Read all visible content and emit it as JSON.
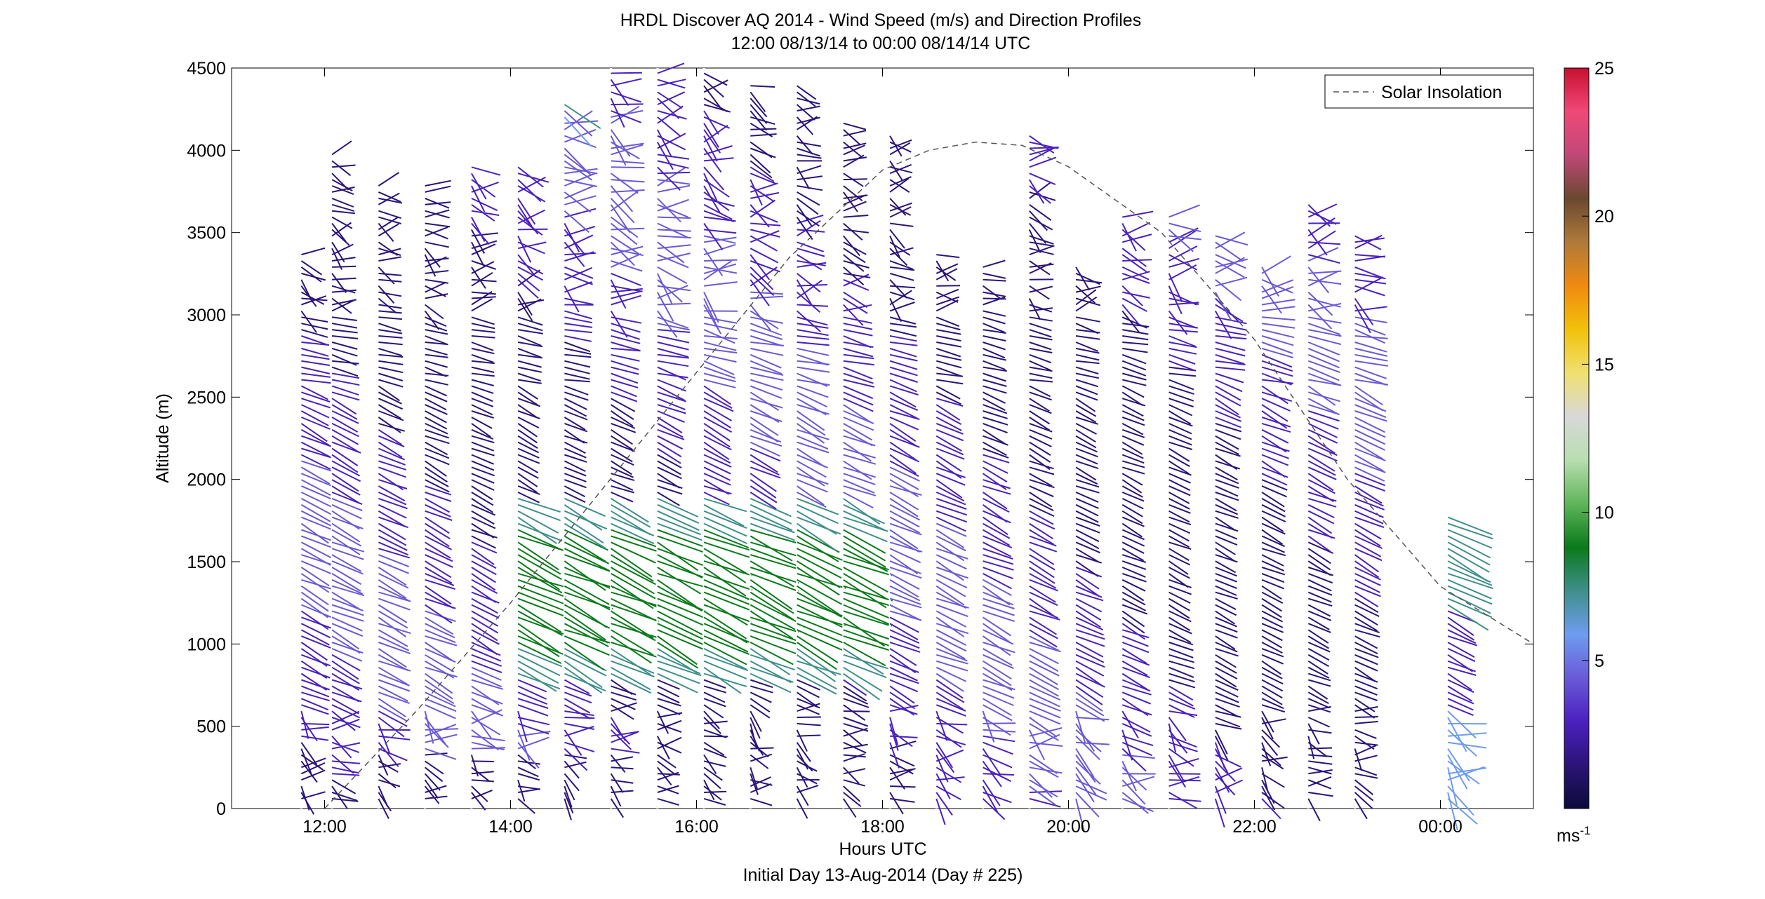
{
  "chart_data": {
    "type": "wind-profile",
    "title": "HRDL Discover AQ 2014 - Wind Speed (m/s) and Direction Profiles",
    "subtitle": "12:00 08/13/14 to 00:00 08/14/14  UTC",
    "xlabel": "Hours UTC",
    "xlabel_sub": "Initial Day 13-Aug-2014 (Day # 225)",
    "ylabel": "Altitude (m)",
    "xlim_hours": [
      11,
      25
    ],
    "ylim": [
      0,
      4500
    ],
    "x_ticks": [
      {
        "hour": 12,
        "label": "12:00"
      },
      {
        "hour": 14,
        "label": "14:00"
      },
      {
        "hour": 16,
        "label": "16:00"
      },
      {
        "hour": 18,
        "label": "18:00"
      },
      {
        "hour": 20,
        "label": "20:00"
      },
      {
        "hour": 22,
        "label": "22:00"
      },
      {
        "hour": 24,
        "label": "00:00"
      }
    ],
    "y_ticks": [
      0,
      500,
      1000,
      1500,
      2000,
      2500,
      3000,
      3500,
      4000,
      4500
    ],
    "legend": {
      "label": "Solar Insolation",
      "placement": "top-right",
      "style": "dashed"
    },
    "colorbar": {
      "label": "ms",
      "label_exp": "-1",
      "range": [
        0,
        25
      ],
      "ticks": [
        5,
        10,
        15,
        20,
        25
      ],
      "colors": [
        "#0b0b3b",
        "#2c1478",
        "#4a20c0",
        "#6a5ad8",
        "#6e9cf0",
        "#3f8f8a",
        "#0a7a1a",
        "#5fb55a",
        "#b8deb0",
        "#d8d8d8",
        "#f0e070",
        "#f2c10a",
        "#f08a10",
        "#b07a3a",
        "#6a4830",
        "#c04878",
        "#f04878",
        "#c81030"
      ]
    },
    "insolation_curve": {
      "x_hours": [
        12,
        13,
        14,
        15,
        16,
        17,
        18,
        18.5,
        19,
        19.5,
        20,
        21,
        22,
        23,
        24,
        25
      ],
      "y": [
        0,
        600,
        1250,
        1950,
        2650,
        3350,
        3880,
        4000,
        4050,
        4030,
        3900,
        3500,
        2850,
        2000,
        1350,
        1000
      ]
    },
    "profile_times_hours": [
      11.75,
      12.08,
      12.58,
      13.08,
      13.58,
      14.08,
      14.58,
      15.08,
      15.58,
      16.08,
      16.58,
      17.08,
      17.58,
      18.08,
      18.58,
      19.08,
      19.58,
      20.08,
      20.58,
      21.08,
      21.58,
      22.08,
      22.58,
      23.08,
      24.08
    ],
    "profile_top_m": [
      3400,
      4000,
      3800,
      3800,
      3900,
      3900,
      4300,
      4500,
      4500,
      4500,
      4400,
      4400,
      4200,
      4100,
      3400,
      3300,
      4100,
      3300,
      3600,
      3600,
      3500,
      3300,
      3700,
      3500,
      1800
    ]
  }
}
